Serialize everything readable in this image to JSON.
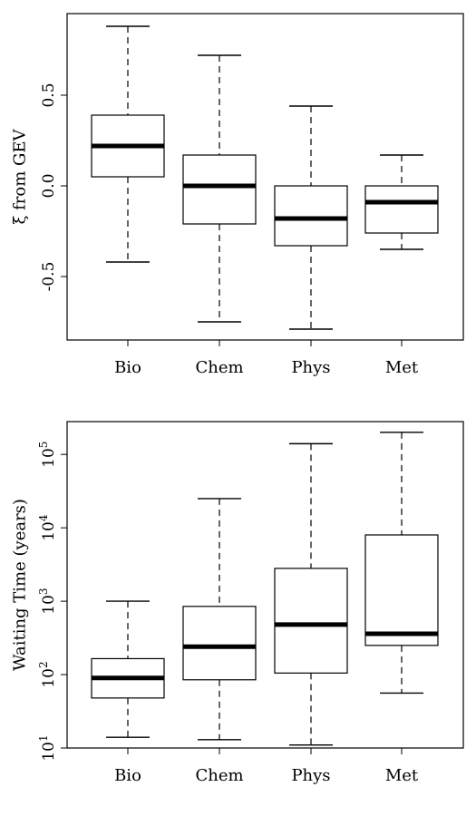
{
  "chart_data": [
    {
      "type": "boxplot",
      "ylabel": "ξ from GEV",
      "yscale": "linear",
      "ylim": [
        -0.85,
        0.95
      ],
      "yticks": [
        -0.5,
        0.0,
        0.5
      ],
      "ytick_labels": [
        "-0.5",
        "0.0",
        "0.5"
      ],
      "categories": [
        "Bio",
        "Chem",
        "Phys",
        "Met"
      ],
      "boxes": [
        {
          "whisker_low": -0.42,
          "q1": 0.05,
          "median": 0.22,
          "q3": 0.39,
          "whisker_high": 0.88
        },
        {
          "whisker_low": -0.75,
          "q1": -0.21,
          "median": 0.0,
          "q3": 0.17,
          "whisker_high": 0.72
        },
        {
          "whisker_low": -0.79,
          "q1": -0.33,
          "median": -0.18,
          "q3": 0.0,
          "whisker_high": 0.44
        },
        {
          "whisker_low": -0.35,
          "q1": -0.26,
          "median": -0.09,
          "q3": 0.0,
          "whisker_high": 0.17
        }
      ]
    },
    {
      "type": "boxplot",
      "ylabel": "Waiting Time (years)",
      "yscale": "log10",
      "ylim": [
        10,
        280000
      ],
      "yticks": [
        10,
        100,
        1000,
        10000,
        100000
      ],
      "ytick_labels": [
        {
          "base": "10",
          "exp": "1"
        },
        {
          "base": "10",
          "exp": "2"
        },
        {
          "base": "10",
          "exp": "3"
        },
        {
          "base": "10",
          "exp": "4"
        },
        {
          "base": "10",
          "exp": "5"
        }
      ],
      "categories": [
        "Bio",
        "Chem",
        "Phys",
        "Met"
      ],
      "boxes": [
        {
          "whisker_low": 14,
          "q1": 48,
          "median": 90,
          "q3": 165,
          "whisker_high": 1000
        },
        {
          "whisker_low": 13,
          "q1": 85,
          "median": 240,
          "q3": 850,
          "whisker_high": 25000
        },
        {
          "whisker_low": 11,
          "q1": 105,
          "median": 480,
          "q3": 2800,
          "whisker_high": 140000
        },
        {
          "whisker_low": 56,
          "q1": 250,
          "median": 360,
          "q3": 8000,
          "whisker_high": 200000
        }
      ]
    }
  ]
}
